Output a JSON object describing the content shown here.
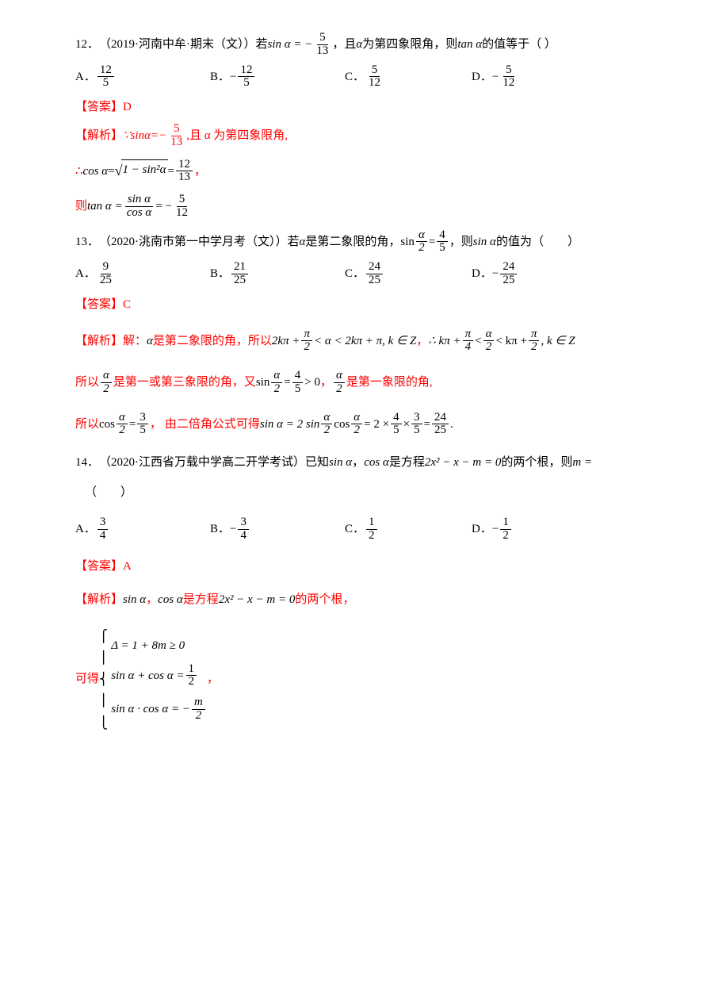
{
  "colors": {
    "text": "#000000",
    "accent": "#ff0000",
    "bg": "#ffffff"
  },
  "typography": {
    "base_size_pt": 11,
    "math_family": "Times New Roman",
    "cjk_family": "SimSun"
  },
  "q12": {
    "number": "12．",
    "source": "（2019·河南中牟·期末（文））",
    "stem_pre": "若",
    "eq_lhs": "sin α = −",
    "eq_frac": {
      "num": "5",
      "den": "13"
    },
    "stem_mid": "，且",
    "alpha": "α",
    "stem_post": "为第四象限角，则",
    "tan": "tan α",
    "stem_end": "的值等于（  ）",
    "options": {
      "A": {
        "label": "A．",
        "sign": "",
        "num": "12",
        "den": "5"
      },
      "B": {
        "label": "B．",
        "sign": "−",
        "num": "12",
        "den": "5"
      },
      "C": {
        "label": "C．",
        "sign": "",
        "num": "5",
        "den": "12"
      },
      "D": {
        "label": "D．",
        "sign": "−",
        "num": "5",
        "den": "12"
      }
    },
    "answer_label": "【答案】",
    "answer": "D",
    "explain_label": "【解析】",
    "exp1_pre": "∵sinα=−",
    "exp1_frac": {
      "num": "5",
      "den": "13"
    },
    "exp1_post": ",且 α 为第四象限角,",
    "exp2_pre": "∴",
    "exp2_cos": "cos α",
    "exp2_eq": " = ",
    "exp2_sqrt_arg": "1 − sin²α",
    "exp2_eq2": " = ",
    "exp2_frac": {
      "num": "12",
      "den": "13"
    },
    "exp2_punct": "，",
    "exp3_pre": "则",
    "exp3_tan": "tan α = ",
    "exp3_frac1": {
      "num": "sin α",
      "den": "cos α"
    },
    "exp3_eq": " = −",
    "exp3_frac2": {
      "num": "5",
      "den": "12"
    }
  },
  "q13": {
    "number": "13．",
    "source": "（2020·洮南市第一中学月考（文））",
    "stem_pre": "若",
    "alpha": "α",
    "stem_mid": "是第二象限的角，",
    "sin_half_eq": "sin",
    "sin_half_frac": {
      "num": "α",
      "den": "2"
    },
    "sin_half_eq2": " = ",
    "sin_half_val": {
      "num": "4",
      "den": "5"
    },
    "stem_post": "，则",
    "sina": "sin α",
    "stem_end": "的值为（　　）",
    "options": {
      "A": {
        "label": "A．",
        "sign": "",
        "num": "9",
        "den": "25"
      },
      "B": {
        "label": "B．",
        "sign": "",
        "num": "21",
        "den": "25"
      },
      "C": {
        "label": "C．",
        "sign": "",
        "num": "24",
        "den": "25"
      },
      "D": {
        "label": "D．",
        "sign": "−",
        "num": "24",
        "den": "25"
      }
    },
    "answer_label": "【答案】",
    "answer": "C",
    "explain_label": "【解析】",
    "exp1_pre": "解：",
    "exp1_alpha": "α",
    "exp1_mid": "是第二象限的角，所以",
    "exp1_range": "2kπ +",
    "exp1_pi2": {
      "num": "π",
      "den": "2"
    },
    "exp1_lt": " < α < 2kπ + π, k ∈ Z",
    "exp1_comma": "，",
    "exp1_so": "∴ kπ +",
    "exp1_pi4": {
      "num": "π",
      "den": "4"
    },
    "exp1_lt2": " < ",
    "exp1_a2": {
      "num": "α",
      "den": "2"
    },
    "exp1_lt3": " < kπ +",
    "exp1_pi2b": {
      "num": "π",
      "den": "2"
    },
    "exp1_end": " , k ∈ Z",
    "exp2_pre": "所以",
    "exp2_a2": {
      "num": "α",
      "den": "2"
    },
    "exp2_mid": "是第一或第三象限的角，又",
    "exp2_sin": "sin",
    "exp2_eq": " = ",
    "exp2_val": {
      "num": "4",
      "den": "5"
    },
    "exp2_gt": " > 0",
    "exp2_comma": "，",
    "exp2_a2b": {
      "num": "α",
      "den": "2"
    },
    "exp2_end": "是第一象限的角,",
    "exp3_pre": "所以",
    "exp3_cos": "cos",
    "exp3_a2": {
      "num": "α",
      "den": "2"
    },
    "exp3_eq": " = ",
    "exp3_val": {
      "num": "3",
      "den": "5"
    },
    "exp3_comma": "，",
    "exp3_mid": "由二倍角公式可得",
    "exp3_sina": "sin α = 2 sin",
    "exp3_a2b": {
      "num": "α",
      "den": "2"
    },
    "exp3_cos2": "cos",
    "exp3_a2c": {
      "num": "α",
      "den": "2"
    },
    "exp3_eq2": " = 2 × ",
    "exp3_v1": {
      "num": "4",
      "den": "5"
    },
    "exp3_times": " × ",
    "exp3_v2": {
      "num": "3",
      "den": "5"
    },
    "exp3_eq3": " = ",
    "exp3_res": {
      "num": "24",
      "den": "25"
    },
    "exp3_period": "."
  },
  "q14": {
    "number": "14．",
    "source": "（2020·江西省万载中学高二开学考试）",
    "stem_pre": "已知",
    "sina": "sin α",
    "comma": "，",
    "cosa": "cos α",
    "stem_mid": "是方程",
    "eq": "2x² − x − m = 0",
    "stem_post": "的两个根，则",
    "m": "m =",
    "blank": "（　　）",
    "options": {
      "A": {
        "label": "A．",
        "sign": "",
        "num": "3",
        "den": "4"
      },
      "B": {
        "label": "B．",
        "sign": "−",
        "num": "3",
        "den": "4"
      },
      "C": {
        "label": "C．",
        "sign": "",
        "num": "1",
        "den": "2"
      },
      "D": {
        "label": "D．",
        "sign": "−",
        "num": "1",
        "den": "2"
      }
    },
    "answer_label": "【答案】",
    "answer": "A",
    "explain_label": "【解析】",
    "exp1_sina": "sin α",
    "exp1_comma": "，",
    "exp1_cosa": "cos α",
    "exp1_mid": "是方程",
    "exp1_eq": "2x² − x − m = 0",
    "exp1_end": "的两个根，",
    "exp2_pre": "可得",
    "brace": {
      "l1": "Δ = 1 + 8m ≥ 0",
      "l2_lhs": "sin α + cos α = ",
      "l2_frac": {
        "num": "1",
        "den": "2"
      },
      "l3_lhs": "sin α · cos α = −",
      "l3_frac": {
        "num": "m",
        "den": "2"
      }
    },
    "brace_punct": "，"
  }
}
